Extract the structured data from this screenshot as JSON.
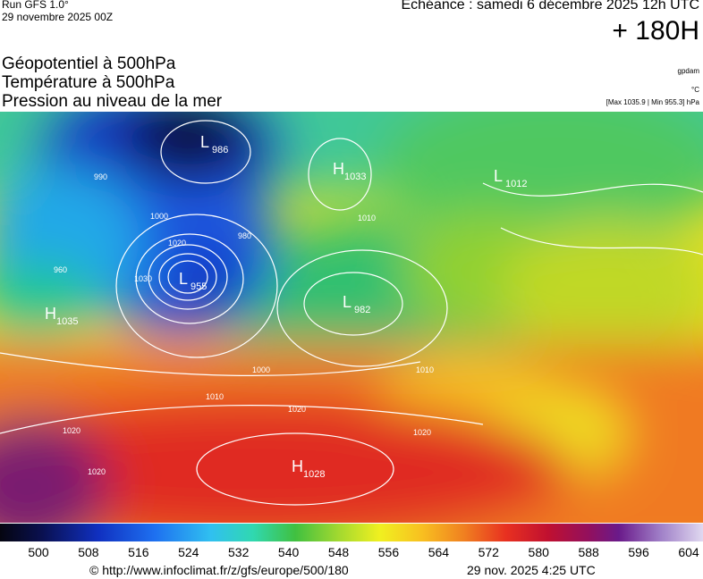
{
  "header": {
    "run": "Run GFS 1.0°",
    "run_date": "29 novembre 2025 00Z",
    "valid": "Echéance : samedi 6 décembre 2025 12h UTC",
    "lead": "+ 180H",
    "titles": [
      "Géopotentiel à 500hPa",
      "Température à 500hPa",
      "Pression au niveau de la mer"
    ],
    "units": [
      "gpdam",
      "°C",
      "[Max 1035.9 | Min 955.3] hPa"
    ]
  },
  "centers": [
    {
      "kind": "L",
      "value": 986
    },
    {
      "kind": "H",
      "value": 1033
    },
    {
      "kind": "L",
      "value": 1012
    },
    {
      "kind": "L",
      "value": 955
    },
    {
      "kind": "L",
      "value": 982
    },
    {
      "kind": "H",
      "value": 1035
    },
    {
      "kind": "H",
      "value": 1028
    }
  ],
  "isobar_labels": [
    990,
    1000,
    1010,
    1020,
    1030,
    980,
    960,
    1000,
    1010,
    1020,
    1020,
    1020,
    1020,
    1010
  ],
  "scale": {
    "ticks": [
      500,
      508,
      516,
      524,
      532,
      540,
      548,
      556,
      564,
      572,
      580,
      588,
      596,
      604
    ]
  },
  "footer": {
    "source": "© http://www.infoclimat.fr/z/gfs/europe/500/180",
    "generated": "29 nov. 2025  4:25 UTC"
  }
}
